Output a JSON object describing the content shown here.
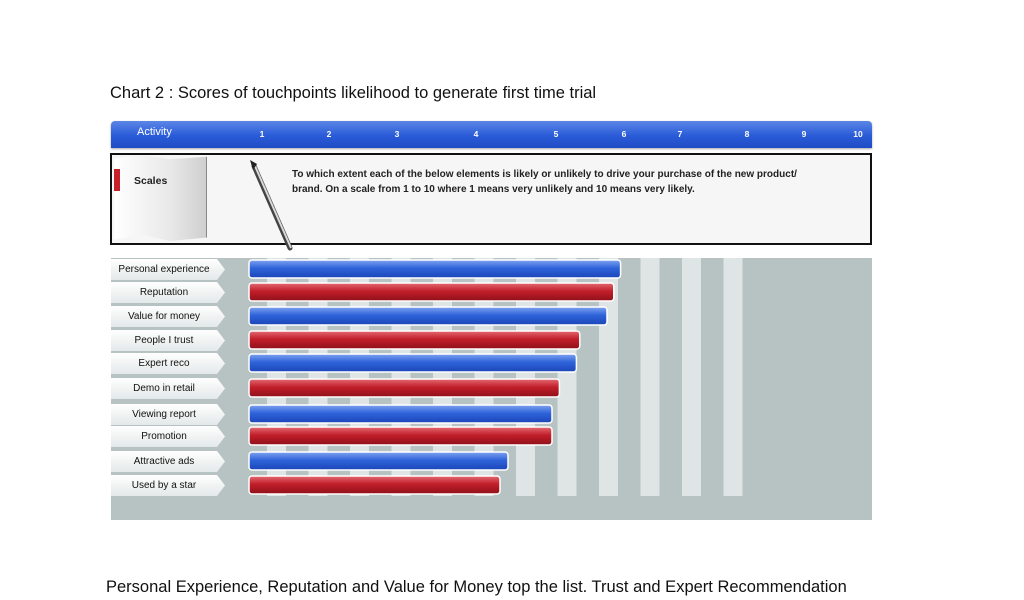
{
  "page": {
    "title": "Chart 2 : Scores of touchpoints likelihood to generate first time trial",
    "caption": "Personal Experience, Reputation and Value for Money top the list.  Trust and Expert Recommendation"
  },
  "header": {
    "label": "Activity"
  },
  "scales": {
    "label": "Scales",
    "question_line1": "To which extent each of the below elements  is likely or unlikely to drive your purchase of the new product/",
    "question_line2": "brand. On a scale from 1 to 10 where 1 means very unlikely and 10 means very likely."
  },
  "colors": {
    "blue": "#2f63da",
    "red": "#c21f2b",
    "header": "#2a5bd8",
    "plot_bg": "#b7c3c3",
    "stripe": "#dfe5e5"
  },
  "chart_data": {
    "type": "bar",
    "orientation": "horizontal",
    "ticks": [
      "1",
      "2",
      "3",
      "4",
      "5",
      "6",
      "7",
      "8",
      "9",
      "10"
    ],
    "categories": [
      "Personal experience",
      "Reputation",
      "Value for money",
      "People I trust",
      "Expert reco",
      "Demo in retail",
      "Viewing report",
      "Promotion",
      "Attractive ads",
      "Used by a star"
    ],
    "values": [
      5.95,
      5.85,
      5.75,
      5.35,
      5.3,
      5.05,
      4.95,
      4.95,
      4.4,
      4.3
    ],
    "bar_colors": [
      "blue",
      "red",
      "blue",
      "red",
      "blue",
      "red",
      "blue",
      "red",
      "blue",
      "red"
    ],
    "xlim": [
      0,
      10
    ]
  }
}
